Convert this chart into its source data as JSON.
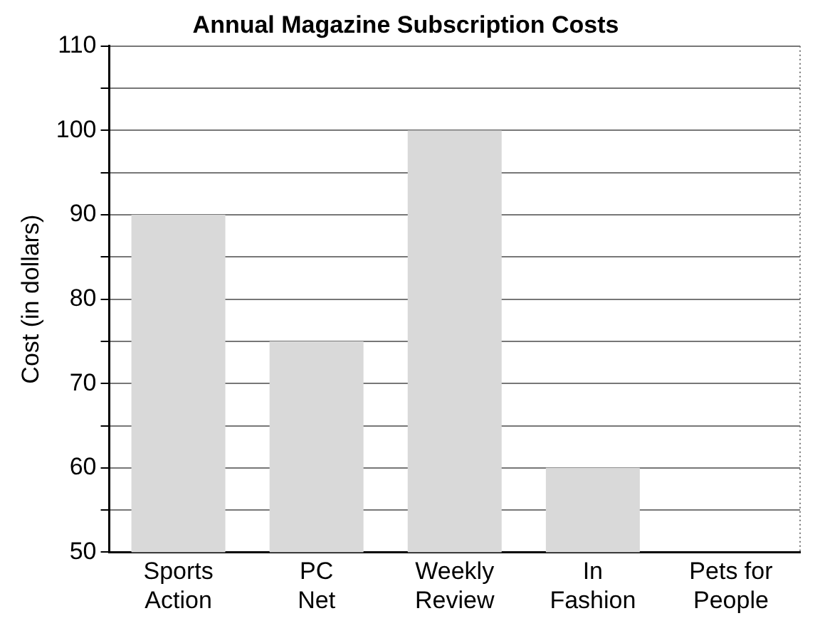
{
  "chart_data": {
    "type": "bar",
    "title": "Annual Magazine Subscription Costs",
    "ylabel": "Cost (in dollars)",
    "categories": [
      "Sports\nAction",
      "PC\nNet",
      "Weekly\nReview",
      "In\nFashion",
      "Pets for\nPeople"
    ],
    "values": [
      90,
      75,
      100,
      60,
      null
    ],
    "color": "#d9d9d9",
    "ylim": [
      50,
      110
    ],
    "yticks": [
      50,
      {
        "value": 55,
        "label": null
      },
      60,
      {
        "value": 65,
        "label": null
      },
      70,
      {
        "value": 75,
        "label": null
      },
      80,
      {
        "value": 85,
        "label": null
      },
      90,
      {
        "value": 95,
        "label": null
      },
      100,
      {
        "value": 105,
        "label": null
      },
      110
    ],
    "grid": "y"
  }
}
